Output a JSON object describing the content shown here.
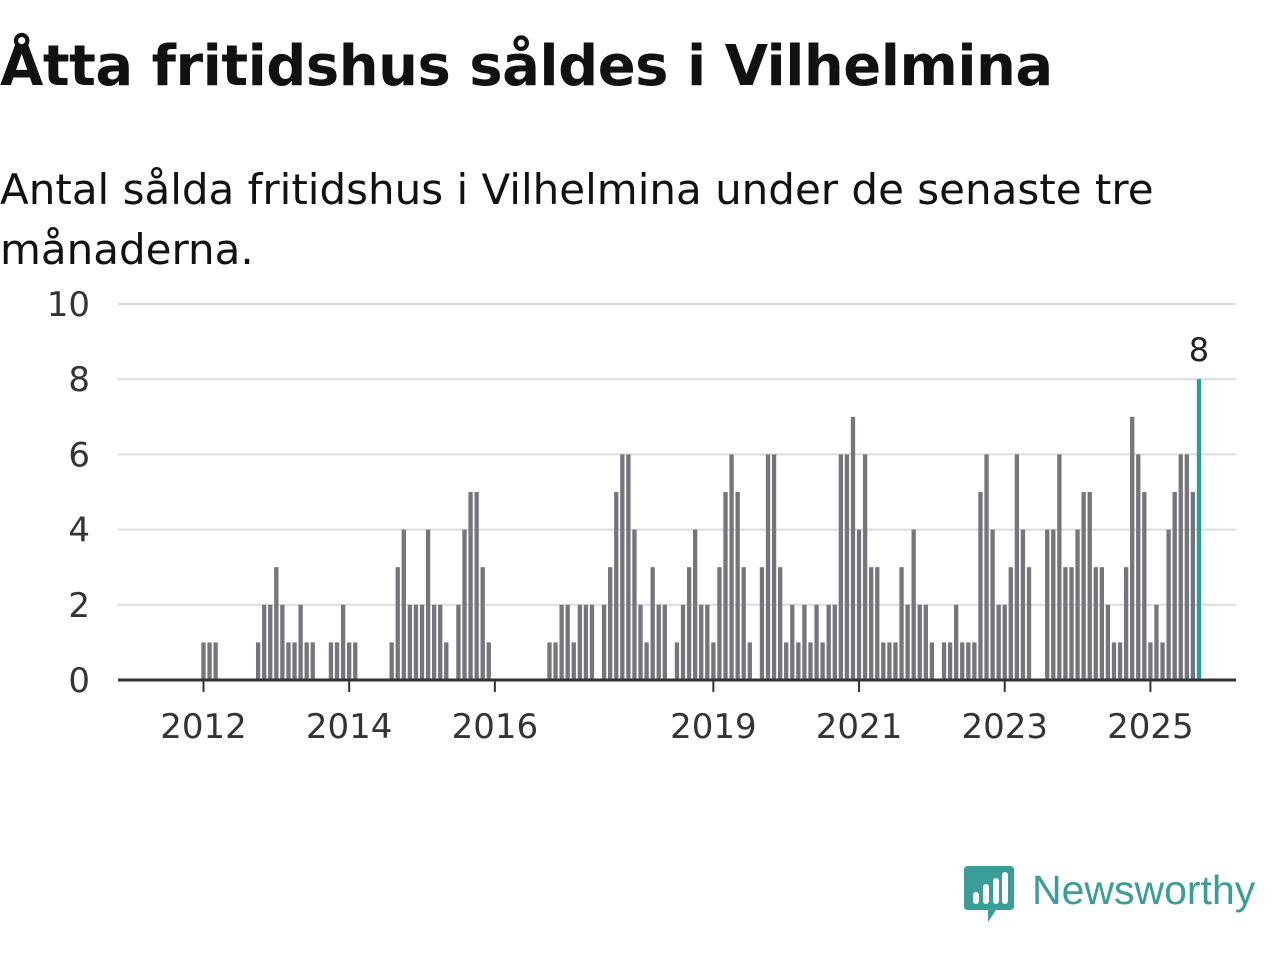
{
  "title": "Åtta fritidshus såldes i Vilhelmina",
  "subtitle": "Antal sålda fritidshus i Vilhelmina under de senaste tre månaderna.",
  "brand": {
    "name": "Newsworthy",
    "color": "#3a9d98"
  },
  "colors": {
    "bar": "#75757b",
    "highlight": "#2a9d95",
    "grid": "#dcdcdc",
    "axis": "#333333",
    "text": "#333333"
  },
  "chart_data": {
    "type": "bar",
    "title": "Åtta fritidshus såldes i Vilhelmina",
    "xlabel": "",
    "ylabel": "",
    "ylim": [
      0,
      10
    ],
    "yticks": [
      0,
      2,
      4,
      6,
      8,
      10
    ],
    "grid": true,
    "x_start": "2011-01",
    "x_tick_labels": [
      {
        "label": "2012",
        "index": 12
      },
      {
        "label": "2014",
        "index": 36
      },
      {
        "label": "2016",
        "index": 60
      },
      {
        "label": "2019",
        "index": 96
      },
      {
        "label": "2021",
        "index": 120
      },
      {
        "label": "2023",
        "index": 144
      },
      {
        "label": "2025",
        "index": 168
      }
    ],
    "highlight_index": 176,
    "highlight_label": "8",
    "values": [
      0,
      0,
      0,
      0,
      0,
      0,
      0,
      0,
      0,
      0,
      0,
      0,
      1,
      1,
      1,
      0,
      0,
      0,
      0,
      0,
      0,
      1,
      2,
      2,
      3,
      2,
      1,
      1,
      2,
      1,
      1,
      0,
      0,
      1,
      1,
      2,
      1,
      1,
      0,
      0,
      0,
      0,
      0,
      1,
      3,
      4,
      2,
      2,
      2,
      4,
      2,
      2,
      1,
      0,
      2,
      4,
      5,
      5,
      3,
      1,
      0,
      0,
      0,
      0,
      0,
      0,
      0,
      0,
      0,
      1,
      1,
      2,
      2,
      1,
      2,
      2,
      2,
      0,
      2,
      3,
      5,
      6,
      6,
      4,
      2,
      1,
      3,
      2,
      2,
      0,
      1,
      2,
      3,
      4,
      2,
      2,
      1,
      3,
      5,
      6,
      5,
      3,
      1,
      0,
      3,
      6,
      6,
      3,
      1,
      2,
      1,
      2,
      1,
      2,
      1,
      2,
      2,
      6,
      6,
      7,
      4,
      6,
      3,
      3,
      1,
      1,
      1,
      3,
      2,
      4,
      2,
      2,
      1,
      0,
      1,
      1,
      2,
      1,
      1,
      1,
      5,
      6,
      4,
      2,
      2,
      3,
      6,
      4,
      3,
      0,
      0,
      4,
      4,
      6,
      3,
      3,
      4,
      5,
      5,
      3,
      3,
      2,
      1,
      1,
      3,
      7,
      6,
      5,
      1,
      2,
      1,
      4,
      5,
      6,
      6,
      5,
      8
    ]
  }
}
